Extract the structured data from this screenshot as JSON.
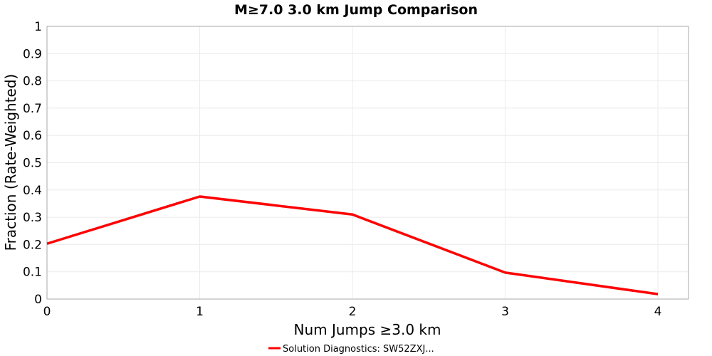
{
  "chart_data": {
    "type": "line",
    "title": "M≥7.0 3.0 km Jump Comparison",
    "xlabel": "Num Jumps ≥3.0 km",
    "ylabel": "Fraction (Rate-Weighted)",
    "xlim": [
      0,
      4.2
    ],
    "ylim": [
      0,
      1
    ],
    "xticks": [
      "0",
      "1",
      "2",
      "3",
      "4"
    ],
    "yticks": [
      "0",
      "0.1",
      "0.2",
      "0.3",
      "0.4",
      "0.5",
      "0.6",
      "0.7",
      "0.8",
      "0.9",
      "1"
    ],
    "grid": true,
    "legend_position": "bottom-center",
    "series": [
      {
        "name": "Solution Diagnostics: SW52ZXJ...",
        "color": "#ff0000",
        "x": [
          0,
          1,
          2,
          3,
          4
        ],
        "y": [
          0.203,
          0.376,
          0.31,
          0.097,
          0.018
        ]
      }
    ]
  }
}
